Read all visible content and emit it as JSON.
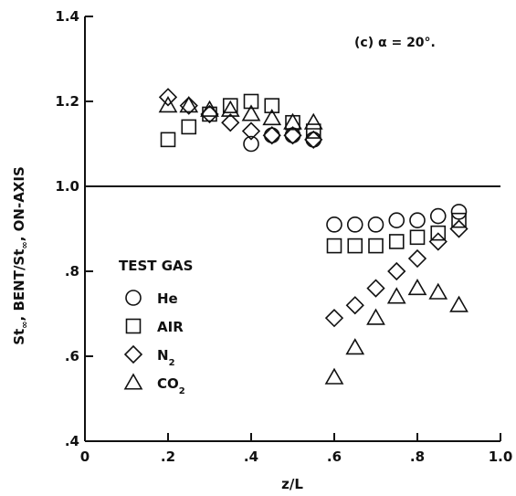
{
  "chart_data": {
    "type": "scatter",
    "annotation": "(c) α = 20°.",
    "xlabel": "z/L",
    "ylabel": {
      "prefix": "St",
      "prefix_sub": "∞",
      "middle": ", BENT/St",
      "middle_sub": "∞",
      "suffix": ", ON-AXIS"
    },
    "xlim": [
      0,
      1.0
    ],
    "ylim": [
      0.4,
      1.4
    ],
    "x_ticks": [
      {
        "value": 0,
        "label": "0"
      },
      {
        "value": 0.2,
        "label": ".2"
      },
      {
        "value": 0.4,
        "label": ".4"
      },
      {
        "value": 0.6,
        "label": ".6"
      },
      {
        "value": 0.8,
        "label": ".8"
      },
      {
        "value": 1.0,
        "label": "1.0"
      }
    ],
    "y_ticks": [
      {
        "value": 0.4,
        "label": ".4"
      },
      {
        "value": 0.6,
        "label": ".6"
      },
      {
        "value": 0.8,
        "label": ".8"
      },
      {
        "value": 1.0,
        "label": "1.0"
      },
      {
        "value": 1.2,
        "label": "1.2"
      },
      {
        "value": 1.4,
        "label": "1.4"
      }
    ],
    "reference_line": 1.0,
    "grid": false,
    "legend": {
      "title": "TEST GAS",
      "placement": "lower-left"
    },
    "series": [
      {
        "name": "He",
        "marker": "circle",
        "x": [
          0.4,
          0.45,
          0.5,
          0.55,
          0.6,
          0.65,
          0.7,
          0.75,
          0.8,
          0.85,
          0.9
        ],
        "y": [
          1.1,
          1.12,
          1.12,
          1.11,
          0.91,
          0.91,
          0.91,
          0.92,
          0.92,
          0.93,
          0.94
        ]
      },
      {
        "name": "AIR",
        "marker": "square",
        "x": [
          0.2,
          0.25,
          0.3,
          0.35,
          0.4,
          0.45,
          0.5,
          0.55,
          0.6,
          0.65,
          0.7,
          0.75,
          0.8,
          0.85,
          0.9
        ],
        "y": [
          1.11,
          1.14,
          1.17,
          1.19,
          1.2,
          1.19,
          1.15,
          1.13,
          0.86,
          0.86,
          0.86,
          0.87,
          0.88,
          0.89,
          0.92
        ]
      },
      {
        "name": "N",
        "name_sub": "2",
        "marker": "diamond",
        "x": [
          0.2,
          0.25,
          0.3,
          0.35,
          0.4,
          0.45,
          0.5,
          0.55,
          0.6,
          0.65,
          0.7,
          0.75,
          0.8,
          0.85,
          0.9
        ],
        "y": [
          1.21,
          1.19,
          1.17,
          1.15,
          1.13,
          1.12,
          1.12,
          1.11,
          0.69,
          0.72,
          0.76,
          0.8,
          0.83,
          0.87,
          0.9
        ]
      },
      {
        "name": "CO",
        "name_sub": "2",
        "marker": "triangle",
        "x": [
          0.2,
          0.25,
          0.3,
          0.35,
          0.4,
          0.45,
          0.5,
          0.55,
          0.6,
          0.65,
          0.7,
          0.75,
          0.8,
          0.85,
          0.9
        ],
        "y": [
          1.19,
          1.19,
          1.18,
          1.18,
          1.17,
          1.16,
          1.15,
          1.15,
          0.55,
          0.62,
          0.69,
          0.74,
          0.76,
          0.75,
          0.72
        ]
      }
    ]
  }
}
